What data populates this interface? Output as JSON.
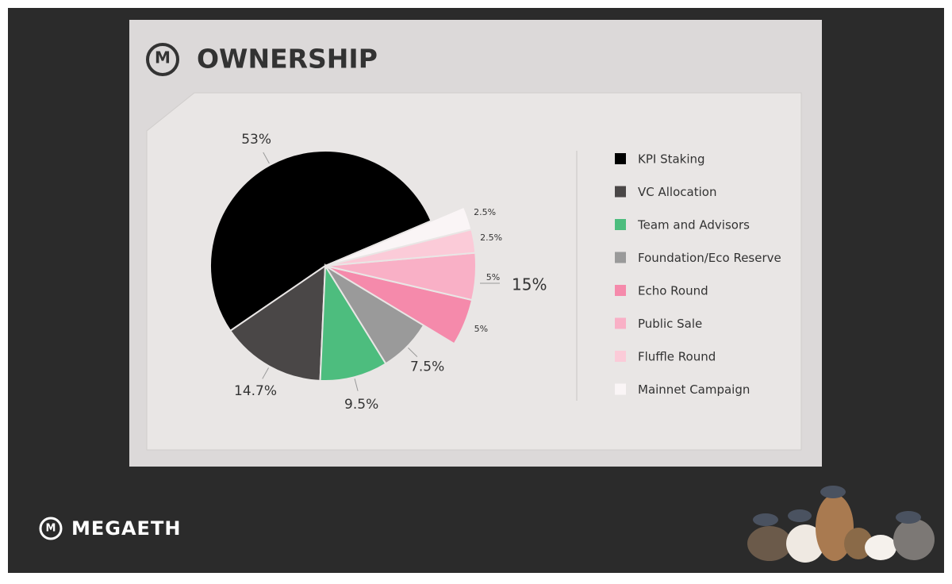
{
  "brand": "MEGAETH",
  "logo_letter": "M",
  "chart_data": {
    "type": "pie",
    "title": "OWNERSHIP",
    "categories": [
      "KPI Staking",
      "VC Allocation",
      "Team and Advisors",
      "Foundation/Eco Reserve",
      "Echo Round",
      "Public Sale",
      "Fluffle Round",
      "Mainnet Campaign"
    ],
    "values": [
      53,
      14.7,
      9.5,
      7.5,
      5,
      5,
      2.5,
      2.5
    ],
    "value_labels": [
      "53%",
      "14.7%",
      "9.5%",
      "7.5%",
      "5%",
      "5%",
      "2.5%",
      "2.5%"
    ],
    "colors": [
      "#000000",
      "#4a4747",
      "#4dbd7e",
      "#9a9a9a",
      "#f58aab",
      "#f9b0c6",
      "#fbcbd8",
      "#faf5f6"
    ],
    "group_label": "15%",
    "legend": "right"
  }
}
